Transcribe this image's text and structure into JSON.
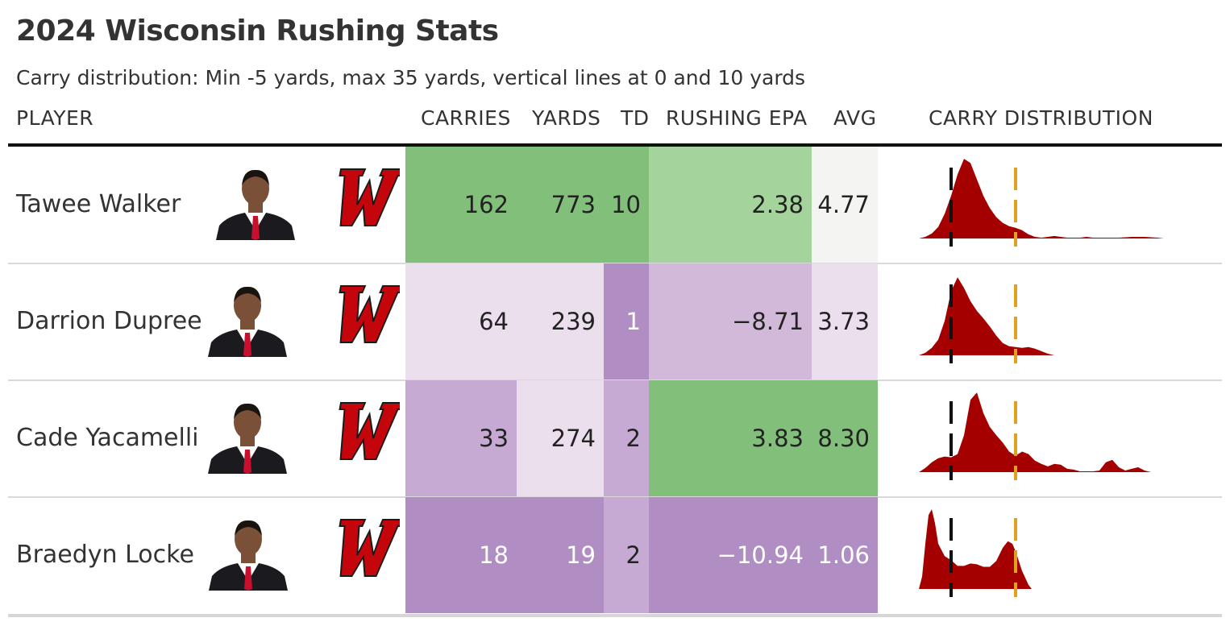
{
  "title": "2024 Wisconsin Rushing Stats",
  "subtitle": "Carry distribution: Min -5 yards, max 35 yards, vertical lines at 0 and 10 yards",
  "columns": {
    "player": "PLAYER",
    "carries": "CARRIES",
    "yards": "YARDS",
    "td": "TD",
    "epa": "RUSHING EPA",
    "avg": "AVG",
    "dist": "CARRY DISTRIBUTION"
  },
  "colors": {
    "green_dark": "#82bf7b",
    "green_light": "#a4d49c",
    "neutral": "#f4f5f2",
    "purple_lightest": "#ebdeed",
    "purple_light": "#d2b9da",
    "purple_mid": "#c6aad4",
    "purple_dark": "#b08dc2",
    "density_fill": "#a50000",
    "zero_line": "#111111",
    "ten_line": "#e0a020"
  },
  "chart_data": {
    "type": "table",
    "distribution_range": [
      -5,
      35
    ],
    "reference_lines": [
      0,
      10
    ],
    "rows": [
      {
        "player": "Tawee Walker",
        "carries": "162",
        "yards": "773",
        "td": "10",
        "epa": "2.38",
        "avg": "4.77",
        "bg": {
          "carries": "#82bf7b",
          "yards": "#82bf7b",
          "td": "#82bf7b",
          "epa": "#a4d49c",
          "avg": "#f4f5f2"
        },
        "fg": {
          "carries": "#222222",
          "yards": "#222222",
          "td": "#222222",
          "epa": "#222222",
          "avg": "#222222"
        },
        "density": [
          [
            -5,
            0
          ],
          [
            -4,
            0.02
          ],
          [
            -3,
            0.06
          ],
          [
            -2,
            0.14
          ],
          [
            -1,
            0.3
          ],
          [
            0,
            0.52
          ],
          [
            1,
            0.78
          ],
          [
            2,
            0.97
          ],
          [
            3,
            0.92
          ],
          [
            4,
            0.72
          ],
          [
            5,
            0.52
          ],
          [
            6,
            0.37
          ],
          [
            7,
            0.26
          ],
          [
            8,
            0.19
          ],
          [
            9,
            0.15
          ],
          [
            10,
            0.13
          ],
          [
            11,
            0.1
          ],
          [
            12,
            0.05
          ],
          [
            13,
            0.02
          ],
          [
            14,
            0.01
          ],
          [
            15,
            0.02
          ],
          [
            16,
            0.03
          ],
          [
            17,
            0.02
          ],
          [
            18,
            0.01
          ],
          [
            20,
            0.01
          ],
          [
            21,
            0.02
          ],
          [
            22,
            0.01
          ],
          [
            24,
            0.01
          ],
          [
            26,
            0.01
          ],
          [
            28,
            0.02
          ],
          [
            30,
            0.02
          ],
          [
            32,
            0.01
          ],
          [
            33,
            0
          ]
        ]
      },
      {
        "player": "Darrion Dupree",
        "carries": "64",
        "yards": "239",
        "td": "1",
        "epa": "−8.71",
        "avg": "3.73",
        "bg": {
          "carries": "#ebdeed",
          "yards": "#ebdeed",
          "td": "#b08dc2",
          "epa": "#d2b9da",
          "avg": "#ebdeed"
        },
        "fg": {
          "carries": "#222222",
          "yards": "#222222",
          "td": "#ffffff",
          "epa": "#222222",
          "avg": "#222222"
        },
        "density": [
          [
            -5,
            0
          ],
          [
            -4,
            0.03
          ],
          [
            -3,
            0.09
          ],
          [
            -2,
            0.19
          ],
          [
            -1,
            0.42
          ],
          [
            0,
            0.78
          ],
          [
            1,
            0.95
          ],
          [
            2,
            0.82
          ],
          [
            3,
            0.66
          ],
          [
            4,
            0.54
          ],
          [
            5,
            0.45
          ],
          [
            6,
            0.35
          ],
          [
            7,
            0.24
          ],
          [
            8,
            0.15
          ],
          [
            9,
            0.11
          ],
          [
            10,
            0.1
          ],
          [
            11,
            0.09
          ],
          [
            12,
            0.1
          ],
          [
            13,
            0.08
          ],
          [
            14,
            0.05
          ],
          [
            15,
            0.02
          ],
          [
            16,
            0
          ]
        ]
      },
      {
        "player": "Cade Yacamelli",
        "carries": "33",
        "yards": "274",
        "td": "2",
        "epa": "3.83",
        "avg": "8.30",
        "bg": {
          "carries": "#c6aad4",
          "yards": "#ebdeed",
          "td": "#c6aad4",
          "epa": "#82bf7b",
          "avg": "#82bf7b"
        },
        "fg": {
          "carries": "#222222",
          "yards": "#222222",
          "td": "#222222",
          "epa": "#222222",
          "avg": "#222222"
        },
        "density": [
          [
            -5,
            0
          ],
          [
            -4,
            0.05
          ],
          [
            -3,
            0.12
          ],
          [
            -2,
            0.17
          ],
          [
            -1,
            0.19
          ],
          [
            0,
            0.18
          ],
          [
            1,
            0.22
          ],
          [
            2,
            0.45
          ],
          [
            3,
            0.88
          ],
          [
            4,
            0.97
          ],
          [
            5,
            0.72
          ],
          [
            6,
            0.55
          ],
          [
            7,
            0.45
          ],
          [
            8,
            0.36
          ],
          [
            9,
            0.25
          ],
          [
            10,
            0.2
          ],
          [
            11,
            0.25
          ],
          [
            12,
            0.22
          ],
          [
            13,
            0.14
          ],
          [
            14,
            0.1
          ],
          [
            15,
            0.07
          ],
          [
            16,
            0.1
          ],
          [
            17,
            0.09
          ],
          [
            18,
            0.04
          ],
          [
            19,
            0.03
          ],
          [
            20,
            0.01
          ],
          [
            21,
            0.01
          ],
          [
            22,
            0.01
          ],
          [
            23,
            0.02
          ],
          [
            24,
            0.12
          ],
          [
            25,
            0.15
          ],
          [
            26,
            0.06
          ],
          [
            27,
            0.02
          ],
          [
            28,
            0.04
          ],
          [
            29,
            0.06
          ],
          [
            30,
            0.02
          ],
          [
            31,
            0
          ]
        ]
      },
      {
        "player": "Braedyn Locke",
        "carries": "18",
        "yards": "19",
        "td": "2",
        "epa": "−10.94",
        "avg": "1.06",
        "bg": {
          "carries": "#b08dc2",
          "yards": "#b08dc2",
          "td": "#c6aad4",
          "epa": "#b08dc2",
          "avg": "#b08dc2"
        },
        "fg": {
          "carries": "#ffffff",
          "yards": "#ffffff",
          "td": "#222222",
          "epa": "#ffffff",
          "avg": "#ffffff"
        },
        "density": [
          [
            -5,
            0
          ],
          [
            -4.5,
            0.15
          ],
          [
            -4,
            0.55
          ],
          [
            -3.5,
            0.9
          ],
          [
            -3,
            0.97
          ],
          [
            -2.5,
            0.8
          ],
          [
            -2,
            0.55
          ],
          [
            -1,
            0.4
          ],
          [
            0,
            0.35
          ],
          [
            1,
            0.28
          ],
          [
            2,
            0.28
          ],
          [
            3,
            0.31
          ],
          [
            4,
            0.3
          ],
          [
            5,
            0.27
          ],
          [
            6,
            0.27
          ],
          [
            7,
            0.34
          ],
          [
            8,
            0.5
          ],
          [
            8.8,
            0.58
          ],
          [
            9.5,
            0.55
          ],
          [
            10,
            0.46
          ],
          [
            11,
            0.22
          ],
          [
            12,
            0.05
          ],
          [
            12.5,
            0
          ]
        ]
      }
    ]
  }
}
